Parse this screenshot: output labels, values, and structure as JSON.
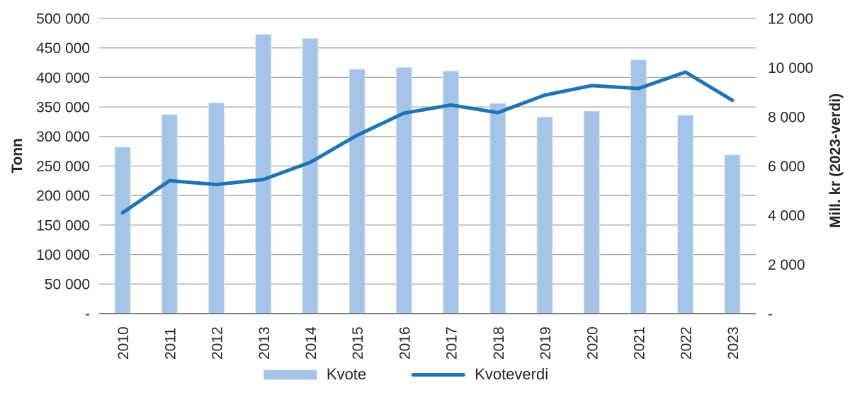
{
  "chart_data": {
    "type": "combo (bar + line)",
    "title": "",
    "categories": [
      "2010",
      "2011",
      "2012",
      "2013",
      "2014",
      "2015",
      "2016",
      "2017",
      "2018",
      "2019",
      "2020",
      "2021",
      "2022",
      "2023"
    ],
    "series": [
      {
        "name": "Kvote",
        "type": "bar",
        "axis": "left",
        "values": [
          282000,
          337000,
          357000,
          473000,
          466000,
          414000,
          417000,
          411000,
          356000,
          333000,
          343000,
          430000,
          336000,
          269000
        ]
      },
      {
        "name": "Kvoteverdi",
        "type": "line",
        "axis": "right",
        "values": [
          4100,
          5400,
          5250,
          5450,
          6150,
          7250,
          8150,
          8480,
          8170,
          8880,
          9270,
          9150,
          9820,
          8670
        ]
      }
    ],
    "left_axis": {
      "title": "Tonn",
      "min": 0,
      "max": 500000,
      "tick_step": 50000,
      "tick_labels": [
        "-",
        "50 000",
        "100 000",
        "150 000",
        "200 000",
        "250 000",
        "300 000",
        "350 000",
        "400 000",
        "450 000",
        "500 000"
      ]
    },
    "right_axis": {
      "title": "Mill. kr (2023-verdi)",
      "min": 0,
      "max": 12000,
      "tick_step": 2000,
      "tick_labels": [
        "-",
        "2 000",
        "4 000",
        "6 000",
        "8 000",
        "10 000",
        "12 000"
      ]
    },
    "legend": [
      {
        "label": "Kvote",
        "swatch": "bar"
      },
      {
        "label": "Kvoteverdi",
        "swatch": "line"
      }
    ],
    "grid": true,
    "legend_position": "bottom"
  },
  "colors": {
    "bar_fill": "#A6C4E8",
    "bar_border": "#DCE6F4",
    "line": "#1F74B5",
    "gridline": "#A6A6A6",
    "axis_line": "#7F7F7F",
    "text": "#262626"
  }
}
